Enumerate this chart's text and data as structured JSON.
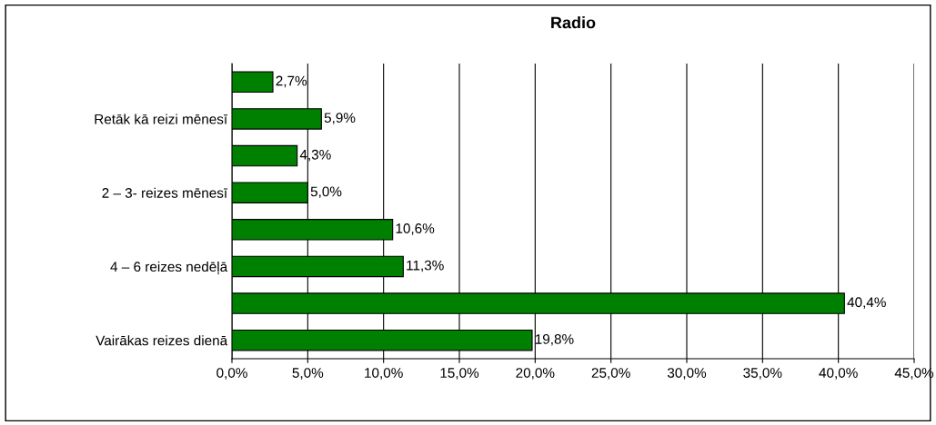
{
  "chart_data": {
    "type": "bar",
    "orientation": "horizontal",
    "title": "Radio",
    "categories": [
      null,
      "Retāk kā reizi mēnesī",
      null,
      "2 – 3- reizes mēnesī",
      null,
      "4 – 6 reizes nedēļā",
      null,
      "Vairākas reizes dienā"
    ],
    "values": [
      2.7,
      5.9,
      4.3,
      5.0,
      10.6,
      11.3,
      40.4,
      19.8
    ],
    "value_labels": [
      "2,7%",
      "5,9%",
      "4,3%",
      "5,0%",
      "10,6%",
      "11,3%",
      "40,4%",
      "19,8%"
    ],
    "color": "#008000",
    "xlim": [
      0,
      45
    ],
    "xticks": [
      {
        "value": 0,
        "label": "0,0%"
      },
      {
        "value": 5,
        "label": "5,0%"
      },
      {
        "value": 10,
        "label": "10,0%"
      },
      {
        "value": 15,
        "label": "15,0%"
      },
      {
        "value": 20,
        "label": "20,0%"
      },
      {
        "value": 25,
        "label": "25,0%"
      },
      {
        "value": 30,
        "label": "30,0%"
      },
      {
        "value": 35,
        "label": "35,0%"
      },
      {
        "value": 40,
        "label": "40,0%"
      },
      {
        "value": 45,
        "label": "45,0%"
      }
    ],
    "grid": "x",
    "legend": false
  }
}
